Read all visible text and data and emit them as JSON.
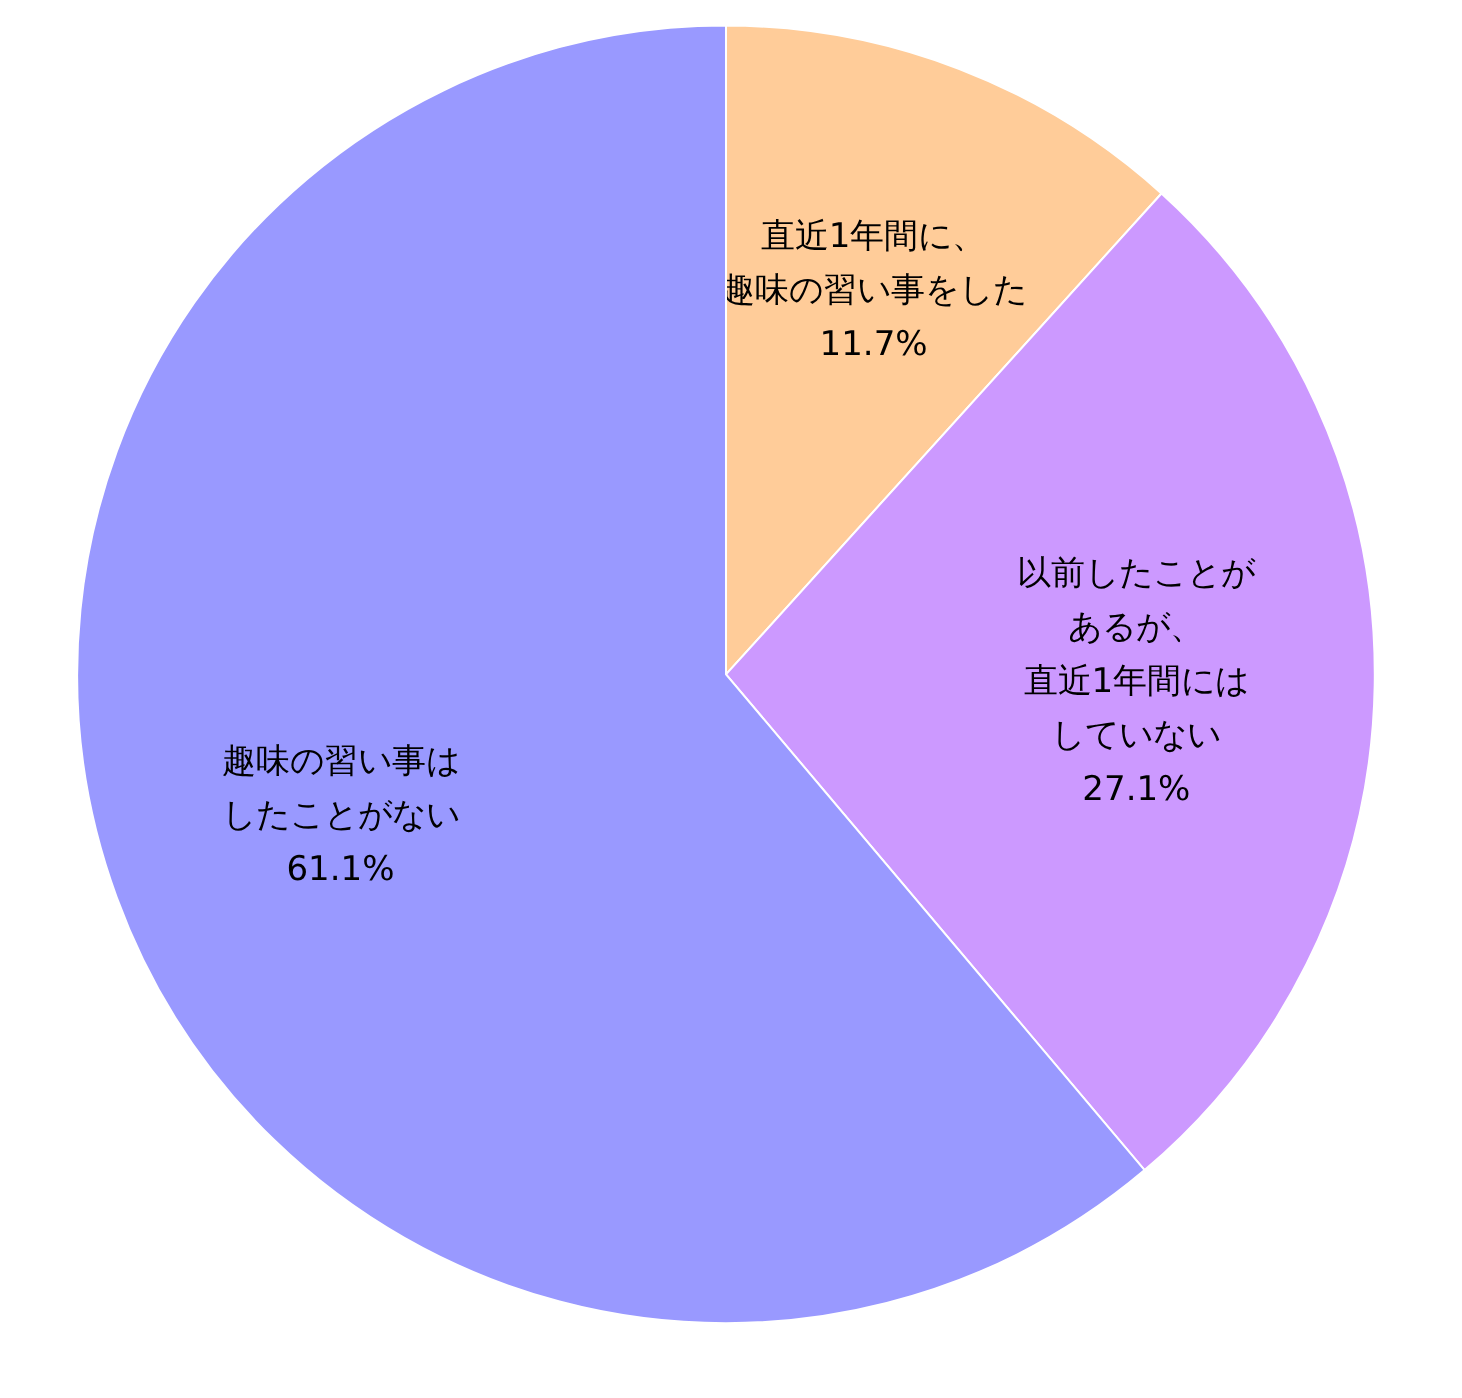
{
  "chart_data": {
    "type": "pie",
    "categories": [
      "直近1年間に、趣味の習い事をした",
      "以前したことがあるが、直近1年間にはしていない",
      "趣味の習い事はしたことがない"
    ],
    "values": [
      11.7,
      27.1,
      61.1
    ],
    "value_labels": [
      "11.7%",
      "27.1%",
      "61.1%"
    ],
    "colors": [
      "#ffcc99",
      "#cc99ff",
      "#9999ff"
    ]
  }
}
